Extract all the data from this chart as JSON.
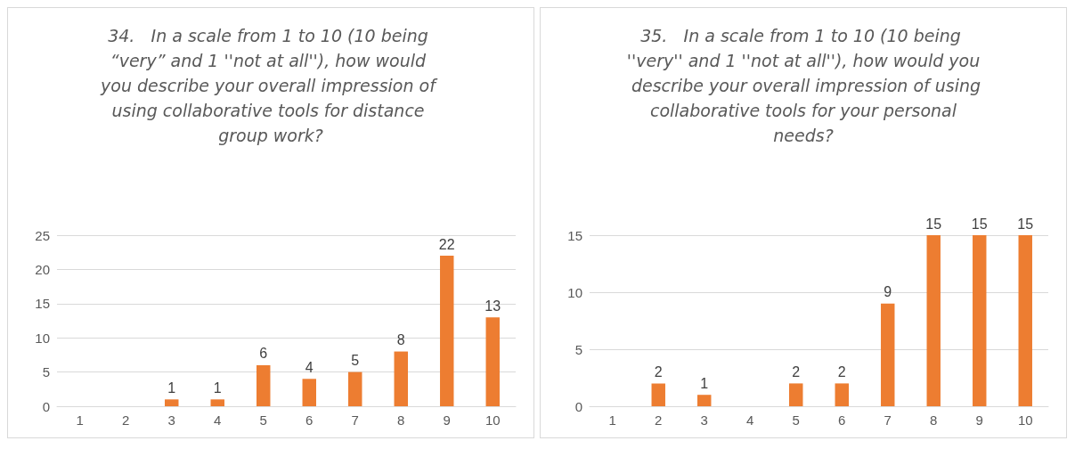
{
  "chart_data": [
    {
      "type": "bar",
      "title": "34.   In a scale from 1 to 10 (10 being “very” and 1 ''not at all''), how would you describe your overall impression of using collaborative tools for distance group work?",
      "categories": [
        "1",
        "2",
        "3",
        "4",
        "5",
        "6",
        "7",
        "8",
        "9",
        "10"
      ],
      "values": [
        0,
        0,
        1,
        1,
        6,
        4,
        5,
        8,
        22,
        13
      ],
      "value_labels": [
        null,
        null,
        "1",
        "1",
        "6",
        "4",
        "5",
        "8",
        "22",
        "13"
      ],
      "color": "#ed7d31",
      "ylim": [
        0,
        25
      ],
      "yticks": [
        0,
        5,
        10,
        15,
        20,
        25
      ],
      "grid": "y"
    },
    {
      "type": "bar",
      "title": "35.   In a scale from 1 to 10 (10 being ''very'' and 1 ''not at all''), how would you describe your overall impression of using collaborative tools for your personal needs?",
      "categories": [
        "1",
        "2",
        "3",
        "4",
        "5",
        "6",
        "7",
        "8",
        "9",
        "10"
      ],
      "values": [
        0,
        2,
        1,
        0,
        2,
        2,
        9,
        15,
        15,
        15
      ],
      "value_labels": [
        null,
        "2",
        "1",
        null,
        "2",
        "2",
        "9",
        "15",
        "15",
        "15"
      ],
      "color": "#ed7d31",
      "ylim": [
        0,
        15
      ],
      "yticks": [
        0,
        5,
        10,
        15
      ],
      "grid": "y"
    }
  ]
}
